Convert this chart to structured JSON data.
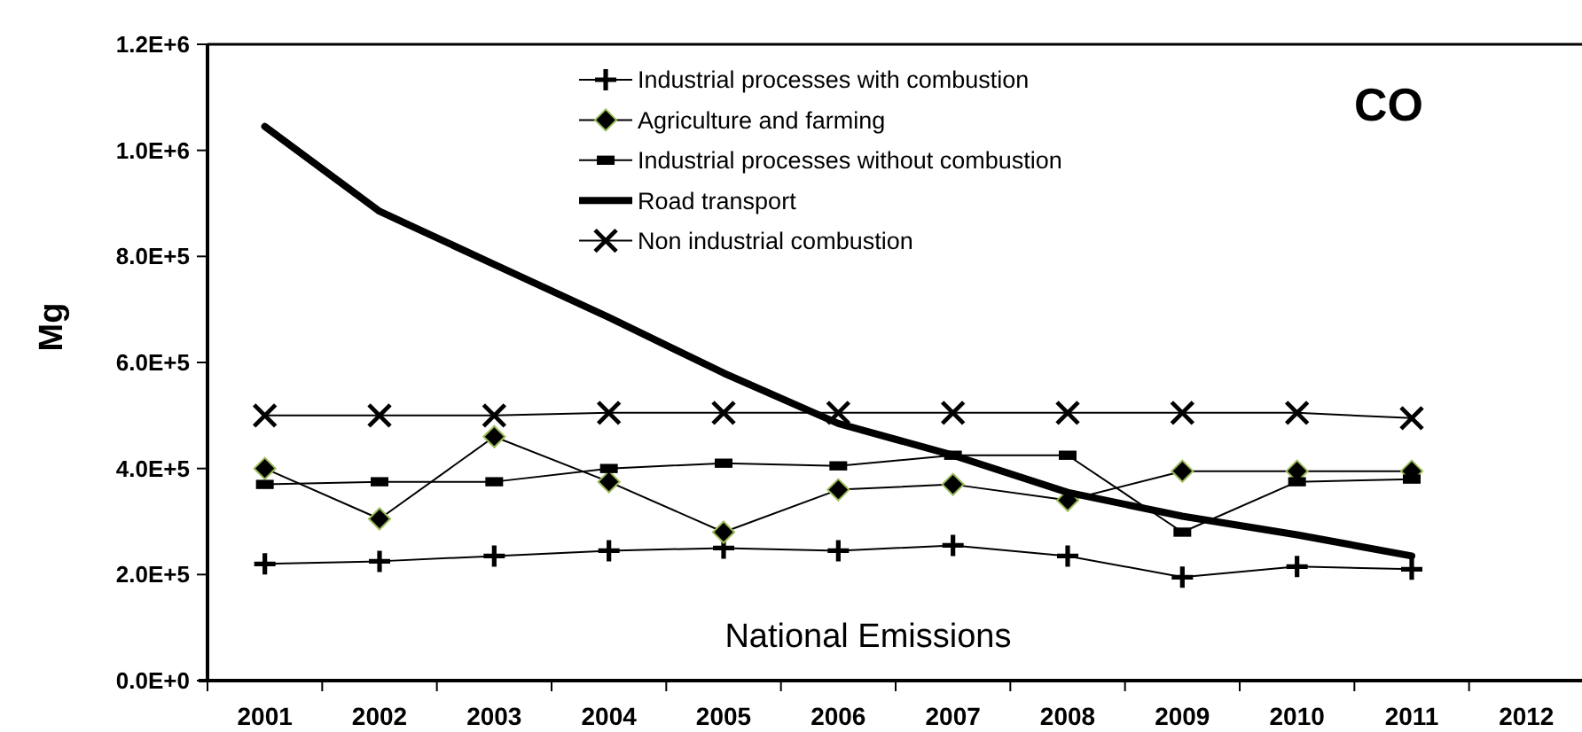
{
  "chart_data": {
    "type": "line",
    "title": "CO",
    "ylabel": "Mg",
    "annotations": [
      "National Emissions"
    ],
    "categories": [
      "2001",
      "2002",
      "2003",
      "2004",
      "2005",
      "2006",
      "2007",
      "2008",
      "2009",
      "2010",
      "2011",
      "2012"
    ],
    "series": [
      {
        "name": "Industrial processes with combustion",
        "color": "#000000",
        "marker": "cross",
        "values": [
          220000,
          225000,
          235000,
          245000,
          250000,
          245000,
          255000,
          235000,
          195000,
          215000,
          210000,
          null
        ]
      },
      {
        "name": "Agriculture and farming",
        "color": "#000000",
        "marker": "diamond",
        "values": [
          400000,
          305000,
          460000,
          375000,
          280000,
          360000,
          370000,
          340000,
          395000,
          395000,
          395000,
          null
        ]
      },
      {
        "name": "Industrial processes without combustion",
        "color": "#000000",
        "marker": "square",
        "values": [
          370000,
          375000,
          375000,
          400000,
          410000,
          405000,
          425000,
          425000,
          280000,
          375000,
          380000,
          null
        ]
      },
      {
        "name": "Road transport",
        "color": "#000000",
        "marker": "none",
        "values": [
          1045000,
          885000,
          785000,
          685000,
          580000,
          485000,
          425000,
          355000,
          310000,
          275000,
          235000,
          null
        ]
      },
      {
        "name": "Non industrial combustion",
        "color": "#000000",
        "marker": "x",
        "values": [
          500000,
          500000,
          500000,
          505000,
          505000,
          505000,
          505000,
          505000,
          505000,
          505000,
          495000,
          null
        ]
      }
    ],
    "ylim": [
      0,
      1200000
    ],
    "yticks": [
      {
        "value": 0,
        "label": "0.0E+0"
      },
      {
        "value": 200000,
        "label": "2.0E+5"
      },
      {
        "value": 400000,
        "label": "4.0E+5"
      },
      {
        "value": 600000,
        "label": "6.0E+5"
      },
      {
        "value": 800000,
        "label": "8.0E+5"
      },
      {
        "value": 1000000,
        "label": "1.0E+6"
      },
      {
        "value": 1200000,
        "label": "1.2E+6"
      }
    ],
    "legend": "top"
  }
}
